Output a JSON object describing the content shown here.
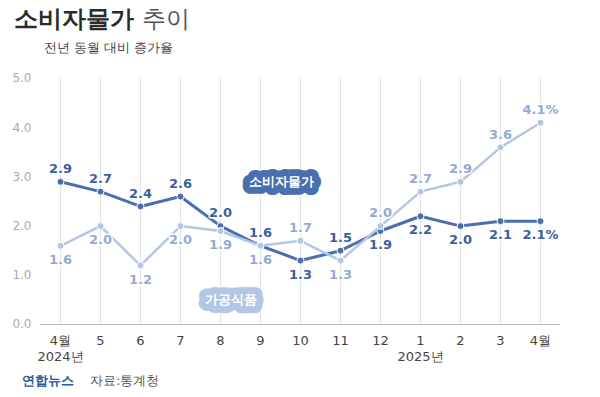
{
  "chart_data": {
    "type": "line",
    "title": "소비자물가 추이",
    "subtitle": "전년 동월 대비 증가율",
    "source": "자료:통계청",
    "credit": "연합뉴스",
    "categories": [
      "4월\n2024년",
      "5",
      "6",
      "7",
      "8",
      "9",
      "10",
      "11",
      "12",
      "1\n2025년",
      "2",
      "3",
      "4월"
    ],
    "ylim": [
      0,
      5
    ],
    "yticks": [
      0,
      1,
      2,
      3,
      4,
      5
    ],
    "grid": true,
    "data_labels": true,
    "series": [
      {
        "name": "소비자물가",
        "color": "#4a6fae",
        "marker": "circle",
        "values": [
          2.9,
          2.7,
          2.4,
          2.6,
          2.0,
          1.6,
          1.3,
          1.5,
          1.9,
          2.2,
          2.0,
          2.1,
          2.1
        ],
        "value_labels": [
          "2.9",
          "2.7",
          "2.4",
          "2.6",
          "2.0",
          "1.6",
          "1.3",
          "1.5",
          "1.9",
          "2.2",
          "2.0",
          "2.1",
          "2.1%"
        ]
      },
      {
        "name": "가공식품",
        "color": "#b3c6e3",
        "marker": "circle",
        "values": [
          1.6,
          2.0,
          1.2,
          2.0,
          1.9,
          1.6,
          1.7,
          1.3,
          2.0,
          2.7,
          2.9,
          3.6,
          4.1
        ],
        "value_labels": [
          "1.6",
          "2.0",
          "1.2",
          "2.0",
          "1.9",
          "1.6",
          "1.7",
          "1.3",
          "2.0",
          "2.7",
          "2.9",
          "3.6",
          "4.1%"
        ]
      }
    ]
  }
}
